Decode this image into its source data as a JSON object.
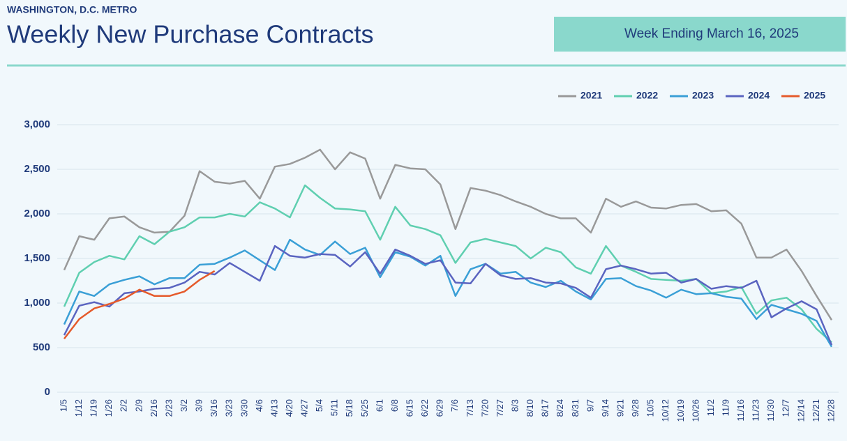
{
  "header": {
    "region": "WASHINGTON, D.C. METRO",
    "badge": "Week Ending March 16, 2025"
  },
  "chart_data": {
    "type": "line",
    "title": "Weekly New Purchase Contracts",
    "categories": [
      "1/5",
      "1/12",
      "1/19",
      "1/26",
      "2/2",
      "2/9",
      "2/16",
      "2/23",
      "3/2",
      "3/9",
      "3/16",
      "3/23",
      "3/30",
      "4/6",
      "4/13",
      "4/20",
      "4/27",
      "5/4",
      "5/11",
      "5/18",
      "5/25",
      "6/1",
      "6/8",
      "6/15",
      "6/22",
      "6/29",
      "7/6",
      "7/13",
      "7/20",
      "7/27",
      "8/3",
      "8/10",
      "8/17",
      "8/24",
      "8/31",
      "9/7",
      "9/14",
      "9/21",
      "9/28",
      "10/5",
      "10/12",
      "10/19",
      "10/26",
      "11/2",
      "11/9",
      "11/16",
      "11/23",
      "11/30",
      "12/7",
      "12/14",
      "12/21",
      "12/28"
    ],
    "series": [
      {
        "name": "2021",
        "color": "#999999",
        "values": [
          1370,
          1750,
          1710,
          1950,
          1970,
          1850,
          1790,
          1800,
          1980,
          2480,
          2360,
          2340,
          2370,
          2170,
          2530,
          2560,
          2630,
          2720,
          2500,
          2690,
          2620,
          2170,
          2550,
          2510,
          2500,
          2330,
          1830,
          2290,
          2260,
          2210,
          2140,
          2080,
          2000,
          1950,
          1950,
          1790,
          2170,
          2080,
          2140,
          2070,
          2060,
          2100,
          2110,
          2030,
          2040,
          1890,
          1510,
          1510,
          1600,
          1360,
          1080,
          810
        ]
      },
      {
        "name": "2022",
        "color": "#5fcfb0",
        "values": [
          960,
          1340,
          1460,
          1530,
          1490,
          1750,
          1660,
          1800,
          1850,
          1960,
          1960,
          2000,
          1970,
          2130,
          2060,
          1960,
          2320,
          2180,
          2060,
          2050,
          2030,
          1710,
          2080,
          1870,
          1830,
          1760,
          1450,
          1680,
          1720,
          1680,
          1640,
          1500,
          1620,
          1570,
          1400,
          1330,
          1640,
          1420,
          1350,
          1270,
          1260,
          1250,
          1270,
          1110,
          1130,
          1180,
          880,
          1030,
          1060,
          930,
          710,
          560
        ]
      },
      {
        "name": "2023",
        "color": "#3a9fd6",
        "values": [
          760,
          1130,
          1080,
          1210,
          1260,
          1300,
          1210,
          1280,
          1280,
          1430,
          1440,
          1510,
          1590,
          1480,
          1370,
          1710,
          1600,
          1540,
          1690,
          1550,
          1620,
          1290,
          1570,
          1520,
          1420,
          1530,
          1080,
          1380,
          1440,
          1330,
          1350,
          1230,
          1180,
          1250,
          1130,
          1040,
          1270,
          1280,
          1190,
          1140,
          1060,
          1150,
          1100,
          1110,
          1070,
          1050,
          820,
          980,
          930,
          880,
          800,
          510
        ]
      },
      {
        "name": "2024",
        "color": "#5a64c0",
        "values": [
          640,
          970,
          1010,
          960,
          1110,
          1130,
          1160,
          1170,
          1230,
          1350,
          1320,
          1450,
          1350,
          1250,
          1640,
          1530,
          1510,
          1550,
          1540,
          1410,
          1570,
          1330,
          1600,
          1530,
          1440,
          1480,
          1230,
          1220,
          1440,
          1310,
          1270,
          1280,
          1230,
          1220,
          1170,
          1060,
          1380,
          1420,
          1380,
          1330,
          1340,
          1230,
          1270,
          1160,
          1190,
          1170,
          1250,
          840,
          940,
          1020,
          930,
          530
        ]
      },
      {
        "name": "2025",
        "color": "#e55a2b",
        "values": [
          600,
          820,
          940,
          990,
          1050,
          1150,
          1080,
          1080,
          1130,
          1260,
          1360,
          null,
          null,
          null,
          null,
          null,
          null,
          null,
          null,
          null,
          null,
          null,
          null,
          null,
          null,
          null,
          null,
          null,
          null,
          null,
          null,
          null,
          null,
          null,
          null,
          null,
          null,
          null,
          null,
          null,
          null,
          null,
          null,
          null,
          null,
          null,
          null,
          null,
          null,
          null,
          null,
          null
        ]
      }
    ],
    "ylim": [
      0,
      3000
    ],
    "yticks": [
      0,
      500,
      {
        "value": 1000,
        "label": "1,000"
      },
      {
        "value": 1500,
        "label": "1,500"
      },
      {
        "value": 2000,
        "label": "2,000"
      },
      {
        "value": 2500,
        "label": "2,500"
      },
      {
        "value": 3000,
        "label": "3,000"
      }
    ],
    "grid": true,
    "legend": "top-right"
  }
}
